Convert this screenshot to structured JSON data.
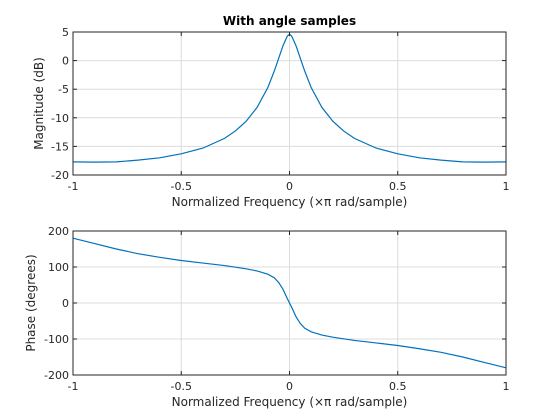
{
  "colors": {
    "series": "#0072BD"
  },
  "chart_data": [
    {
      "type": "line",
      "title": "With angle samples",
      "xlabel": "Normalized Frequency  (×π rad/sample)",
      "ylabel": "Magnitude (dB)",
      "xlim": [
        -1,
        1
      ],
      "ylim": [
        -20,
        5
      ],
      "xticks": [
        -1,
        -0.5,
        0,
        0.5,
        1
      ],
      "xtick_labels": [
        "-1",
        "-0.5",
        "0",
        "0.5",
        "1"
      ],
      "yticks": [
        -20,
        -15,
        -10,
        -5,
        0,
        5
      ],
      "ytick_labels": [
        "-20",
        "-15",
        "-10",
        "-5",
        "0",
        "5"
      ],
      "grid": true,
      "series": [
        {
          "x": [
            -1,
            -0.9,
            -0.8,
            -0.7,
            -0.6,
            -0.5,
            -0.4,
            -0.3,
            -0.25,
            -0.2,
            -0.15,
            -0.1,
            -0.07,
            -0.05,
            -0.03,
            -0.01,
            0,
            0.01,
            0.03,
            0.05,
            0.07,
            0.1,
            0.15,
            0.2,
            0.25,
            0.3,
            0.4,
            0.5,
            0.6,
            0.7,
            0.8,
            0.9,
            1
          ],
          "y": [
            -17.7,
            -17.75,
            -17.7,
            -17.4,
            -17.0,
            -16.3,
            -15.3,
            -13.6,
            -12.3,
            -10.6,
            -8.2,
            -4.7,
            -1.8,
            0.4,
            2.6,
            4.3,
            4.6,
            4.3,
            2.6,
            0.4,
            -1.8,
            -4.7,
            -8.2,
            -10.6,
            -12.3,
            -13.6,
            -15.3,
            -16.3,
            -17.0,
            -17.4,
            -17.7,
            -17.75,
            -17.7
          ]
        }
      ]
    },
    {
      "type": "line",
      "title": "",
      "xlabel": "Normalized Frequency  (×π rad/sample)",
      "ylabel": "Phase (degrees)",
      "xlim": [
        -1,
        1
      ],
      "ylim": [
        -200,
        200
      ],
      "xticks": [
        -1,
        -0.5,
        0,
        0.5,
        1
      ],
      "xtick_labels": [
        "-1",
        "-0.5",
        "0",
        "0.5",
        "1"
      ],
      "yticks": [
        -200,
        -100,
        0,
        100,
        200
      ],
      "ytick_labels": [
        "-200",
        "-100",
        "0",
        "100",
        "200"
      ],
      "grid": true,
      "series": [
        {
          "x": [
            -1,
            -0.9,
            -0.8,
            -0.7,
            -0.6,
            -0.5,
            -0.4,
            -0.3,
            -0.2,
            -0.15,
            -0.1,
            -0.07,
            -0.05,
            -0.03,
            -0.02,
            -0.01,
            0,
            0.01,
            0.02,
            0.03,
            0.05,
            0.07,
            0.1,
            0.15,
            0.2,
            0.3,
            0.4,
            0.5,
            0.6,
            0.7,
            0.8,
            0.9,
            1
          ],
          "y": [
            180,
            165,
            150,
            137,
            127,
            118,
            111,
            104,
            95,
            89,
            80,
            70,
            57,
            38,
            25,
            12,
            0,
            -12,
            -25,
            -38,
            -57,
            -70,
            -80,
            -89,
            -95,
            -104,
            -111,
            -118,
            -127,
            -137,
            -150,
            -165,
            -180
          ]
        }
      ]
    }
  ]
}
